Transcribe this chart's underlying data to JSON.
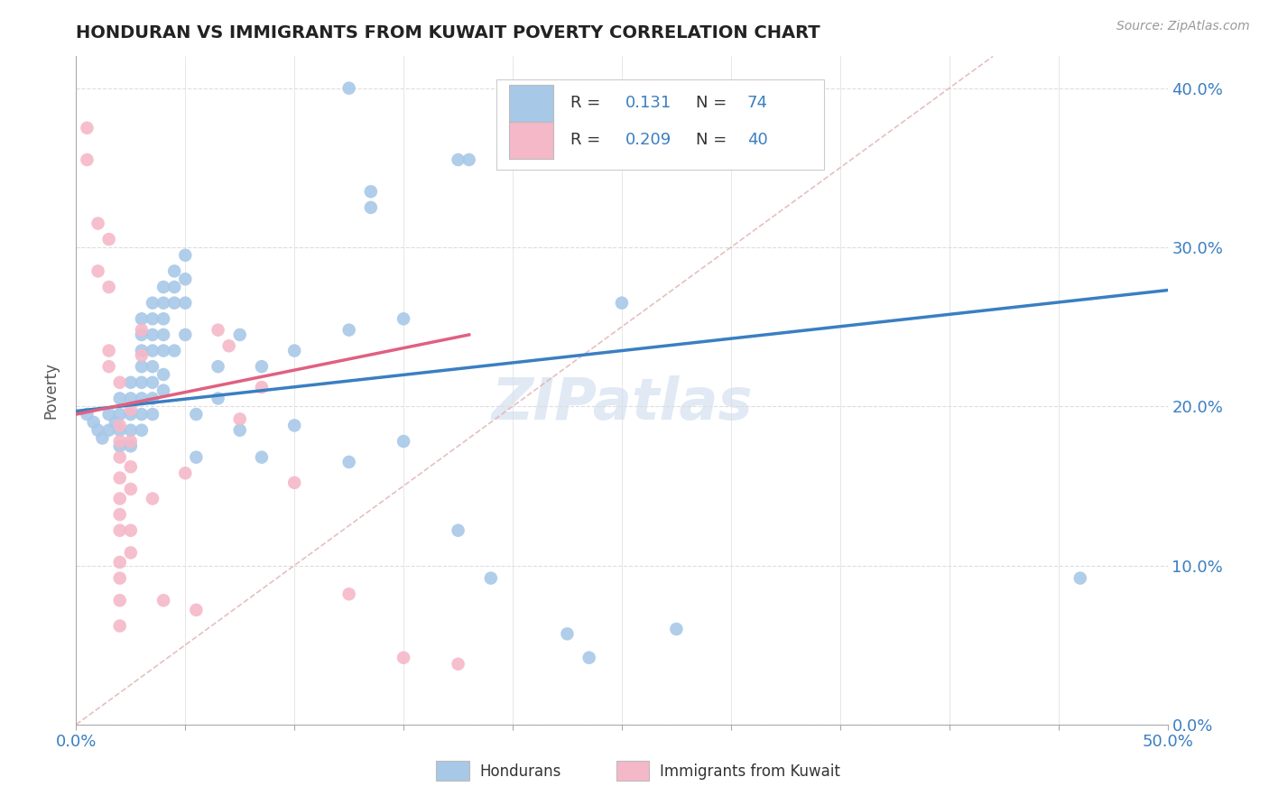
{
  "title": "HONDURAN VS IMMIGRANTS FROM KUWAIT POVERTY CORRELATION CHART",
  "source": "Source: ZipAtlas.com",
  "ylabel": "Poverty",
  "xlim": [
    0.0,
    0.5
  ],
  "ylim": [
    0.0,
    0.42
  ],
  "watermark": "ZIPatlas",
  "honduran_color": "#a8c8e8",
  "kuwait_color": "#f5b8c8",
  "honduran_line_color": "#3a7fc1",
  "kuwait_line_color": "#e06080",
  "diag_line_color": "#e0b0b0",
  "honduran_scatter": [
    [
      0.005,
      0.195
    ],
    [
      0.008,
      0.19
    ],
    [
      0.01,
      0.185
    ],
    [
      0.012,
      0.18
    ],
    [
      0.015,
      0.195
    ],
    [
      0.015,
      0.185
    ],
    [
      0.018,
      0.19
    ],
    [
      0.02,
      0.205
    ],
    [
      0.02,
      0.195
    ],
    [
      0.02,
      0.185
    ],
    [
      0.02,
      0.175
    ],
    [
      0.025,
      0.215
    ],
    [
      0.025,
      0.205
    ],
    [
      0.025,
      0.195
    ],
    [
      0.025,
      0.185
    ],
    [
      0.025,
      0.175
    ],
    [
      0.03,
      0.255
    ],
    [
      0.03,
      0.245
    ],
    [
      0.03,
      0.235
    ],
    [
      0.03,
      0.225
    ],
    [
      0.03,
      0.215
    ],
    [
      0.03,
      0.205
    ],
    [
      0.03,
      0.195
    ],
    [
      0.03,
      0.185
    ],
    [
      0.035,
      0.265
    ],
    [
      0.035,
      0.255
    ],
    [
      0.035,
      0.245
    ],
    [
      0.035,
      0.235
    ],
    [
      0.035,
      0.225
    ],
    [
      0.035,
      0.215
    ],
    [
      0.035,
      0.205
    ],
    [
      0.035,
      0.195
    ],
    [
      0.04,
      0.275
    ],
    [
      0.04,
      0.265
    ],
    [
      0.04,
      0.255
    ],
    [
      0.04,
      0.245
    ],
    [
      0.04,
      0.235
    ],
    [
      0.04,
      0.22
    ],
    [
      0.04,
      0.21
    ],
    [
      0.045,
      0.285
    ],
    [
      0.045,
      0.275
    ],
    [
      0.045,
      0.265
    ],
    [
      0.045,
      0.235
    ],
    [
      0.05,
      0.295
    ],
    [
      0.05,
      0.28
    ],
    [
      0.05,
      0.265
    ],
    [
      0.05,
      0.245
    ],
    [
      0.055,
      0.168
    ],
    [
      0.055,
      0.195
    ],
    [
      0.065,
      0.205
    ],
    [
      0.065,
      0.225
    ],
    [
      0.075,
      0.245
    ],
    [
      0.075,
      0.185
    ],
    [
      0.085,
      0.225
    ],
    [
      0.085,
      0.168
    ],
    [
      0.1,
      0.235
    ],
    [
      0.1,
      0.188
    ],
    [
      0.125,
      0.248
    ],
    [
      0.125,
      0.165
    ],
    [
      0.135,
      0.335
    ],
    [
      0.135,
      0.325
    ],
    [
      0.15,
      0.255
    ],
    [
      0.15,
      0.178
    ],
    [
      0.175,
      0.122
    ],
    [
      0.18,
      0.355
    ],
    [
      0.19,
      0.092
    ],
    [
      0.225,
      0.057
    ],
    [
      0.235,
      0.042
    ],
    [
      0.125,
      0.4
    ],
    [
      0.175,
      0.355
    ],
    [
      0.25,
      0.265
    ],
    [
      0.275,
      0.06
    ],
    [
      0.46,
      0.092
    ]
  ],
  "kuwait_scatter": [
    [
      0.005,
      0.375
    ],
    [
      0.005,
      0.355
    ],
    [
      0.01,
      0.315
    ],
    [
      0.01,
      0.285
    ],
    [
      0.015,
      0.305
    ],
    [
      0.015,
      0.275
    ],
    [
      0.015,
      0.235
    ],
    [
      0.015,
      0.225
    ],
    [
      0.02,
      0.215
    ],
    [
      0.02,
      0.188
    ],
    [
      0.02,
      0.178
    ],
    [
      0.02,
      0.168
    ],
    [
      0.02,
      0.155
    ],
    [
      0.02,
      0.142
    ],
    [
      0.02,
      0.132
    ],
    [
      0.02,
      0.122
    ],
    [
      0.02,
      0.102
    ],
    [
      0.02,
      0.092
    ],
    [
      0.02,
      0.078
    ],
    [
      0.02,
      0.062
    ],
    [
      0.025,
      0.198
    ],
    [
      0.025,
      0.178
    ],
    [
      0.025,
      0.162
    ],
    [
      0.025,
      0.148
    ],
    [
      0.025,
      0.122
    ],
    [
      0.025,
      0.108
    ],
    [
      0.03,
      0.248
    ],
    [
      0.03,
      0.232
    ],
    [
      0.035,
      0.142
    ],
    [
      0.04,
      0.078
    ],
    [
      0.05,
      0.158
    ],
    [
      0.055,
      0.072
    ],
    [
      0.065,
      0.248
    ],
    [
      0.07,
      0.238
    ],
    [
      0.075,
      0.192
    ],
    [
      0.085,
      0.212
    ],
    [
      0.1,
      0.152
    ],
    [
      0.125,
      0.082
    ],
    [
      0.15,
      0.042
    ],
    [
      0.175,
      0.038
    ]
  ]
}
